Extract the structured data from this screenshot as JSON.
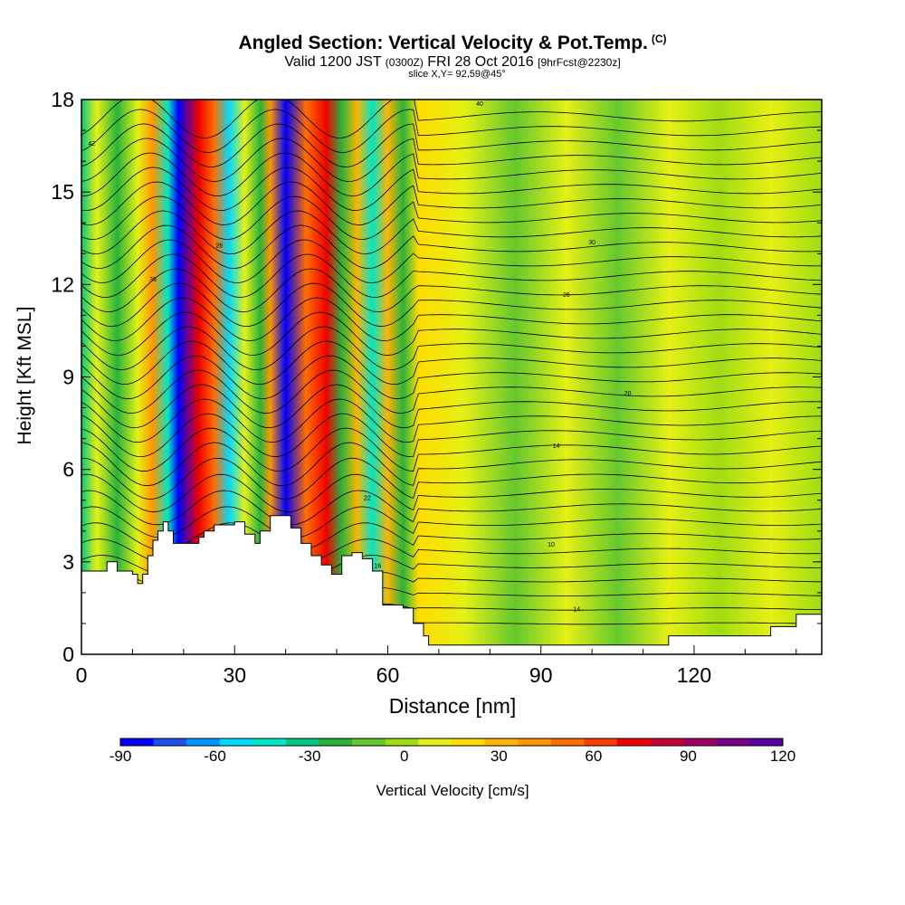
{
  "chart_data": {
    "type": "heatmap",
    "title": "Angled Section: Vertical Velocity & Pot.Temp.",
    "title_tag": "(C)",
    "subtitle_main_a": "Valid 1200 JST",
    "subtitle_small_a": "(0300Z)",
    "subtitle_main_b": "FRI 28 Oct 2016",
    "subtitle_small_b": "[9hrFcst@2230z]",
    "slice_text": "slice X,Y= 92,59@45°",
    "xlabel": "Distance [nm]",
    "ylabel": "Height [Kft MSL]",
    "xlim": [
      0,
      145
    ],
    "ylim": [
      0,
      18
    ],
    "x_ticks": [
      0,
      30,
      60,
      90,
      120
    ],
    "y_ticks": [
      0,
      3,
      6,
      9,
      12,
      15,
      18
    ],
    "colorbar": {
      "label": "Vertical Velocity [cm/s]",
      "range": [
        -90,
        120
      ],
      "tick_labels": [
        "-90",
        "-60",
        "-30",
        "0",
        "30",
        "60",
        "90",
        "120"
      ],
      "colors": [
        "#0000ff",
        "#1e50f0",
        "#0096ff",
        "#00dcff",
        "#00e6c8",
        "#00c882",
        "#28b43c",
        "#64c82d",
        "#a0dc14",
        "#e6f014",
        "#ffdc00",
        "#ffb400",
        "#ff9600",
        "#ff6e00",
        "#ff3c00",
        "#f00000",
        "#c80032",
        "#a00064",
        "#78008c",
        "#5a00a0"
      ]
    },
    "velocity_bands": [
      {
        "x": 0,
        "value": -30
      },
      {
        "x": 3,
        "value": 10
      },
      {
        "x": 7,
        "value": -20
      },
      {
        "x": 11,
        "value": 5
      },
      {
        "x": 14,
        "value": 40
      },
      {
        "x": 17,
        "value": -40
      },
      {
        "x": 19,
        "value": -85
      },
      {
        "x": 23,
        "value": 70
      },
      {
        "x": 26,
        "value": 50
      },
      {
        "x": 29,
        "value": -50
      },
      {
        "x": 32,
        "value": 10
      },
      {
        "x": 35,
        "value": -20
      },
      {
        "x": 37,
        "value": 40
      },
      {
        "x": 40,
        "value": -80
      },
      {
        "x": 44,
        "value": 50
      },
      {
        "x": 48,
        "value": 70
      },
      {
        "x": 51,
        "value": -20
      },
      {
        "x": 54,
        "value": 30
      },
      {
        "x": 57,
        "value": -40
      },
      {
        "x": 60,
        "value": 30
      },
      {
        "x": 63,
        "value": -20
      },
      {
        "x": 66,
        "value": 15
      },
      {
        "x": 75,
        "value": 5
      },
      {
        "x": 85,
        "value": -10
      },
      {
        "x": 95,
        "value": 10
      },
      {
        "x": 105,
        "value": -10
      },
      {
        "x": 115,
        "value": 5
      },
      {
        "x": 125,
        "value": -5
      },
      {
        "x": 135,
        "value": 10
      },
      {
        "x": 145,
        "value": 0
      }
    ],
    "terrain": [
      [
        0,
        2.7
      ],
      [
        5,
        3.0
      ],
      [
        7,
        2.7
      ],
      [
        10,
        2.6
      ],
      [
        11,
        2.3
      ],
      [
        12,
        2.6
      ],
      [
        13,
        3.2
      ],
      [
        14,
        3.7
      ],
      [
        15,
        4.0
      ],
      [
        16,
        4.3
      ],
      [
        17,
        4.0
      ],
      [
        18,
        3.6
      ],
      [
        20,
        3.6
      ],
      [
        22,
        3.6
      ],
      [
        23,
        3.8
      ],
      [
        24,
        4.0
      ],
      [
        26,
        4.2
      ],
      [
        30,
        4.3
      ],
      [
        32,
        3.9
      ],
      [
        34,
        3.6
      ],
      [
        35,
        4.0
      ],
      [
        37,
        4.5
      ],
      [
        39,
        4.5
      ],
      [
        41,
        4.1
      ],
      [
        43,
        3.6
      ],
      [
        45,
        3.2
      ],
      [
        47,
        2.9
      ],
      [
        49,
        2.6
      ],
      [
        51,
        3.2
      ],
      [
        53,
        3.3
      ],
      [
        55,
        3.1
      ],
      [
        57,
        2.7
      ],
      [
        59,
        1.6
      ],
      [
        63,
        1.5
      ],
      [
        65,
        1.0
      ],
      [
        67,
        0.6
      ],
      [
        68,
        0.3
      ],
      [
        100,
        0.3
      ],
      [
        113,
        0.3
      ],
      [
        115,
        0.6
      ],
      [
        128,
        0.6
      ],
      [
        135,
        0.9
      ],
      [
        140,
        1.3
      ],
      [
        145,
        1.3
      ]
    ],
    "theta_contours": {
      "levels": 36,
      "base_height": 1.0,
      "spacing": 0.47
    },
    "contour_labels": [
      {
        "x": 2,
        "y": 16.5,
        "text": "42"
      },
      {
        "x": 14,
        "y": 12.1,
        "text": "36"
      },
      {
        "x": 27,
        "y": 13.2,
        "text": "26"
      },
      {
        "x": 78,
        "y": 17.8,
        "text": "40"
      },
      {
        "x": 100,
        "y": 13.3,
        "text": "30"
      },
      {
        "x": 95,
        "y": 11.6,
        "text": "26"
      },
      {
        "x": 107,
        "y": 8.4,
        "text": "20"
      },
      {
        "x": 93,
        "y": 6.7,
        "text": "14"
      },
      {
        "x": 92,
        "y": 3.5,
        "text": "10"
      },
      {
        "x": 97,
        "y": 1.4,
        "text": "14"
      },
      {
        "x": 58,
        "y": 2.8,
        "text": "16"
      },
      {
        "x": 56,
        "y": 5.0,
        "text": "22"
      }
    ]
  }
}
